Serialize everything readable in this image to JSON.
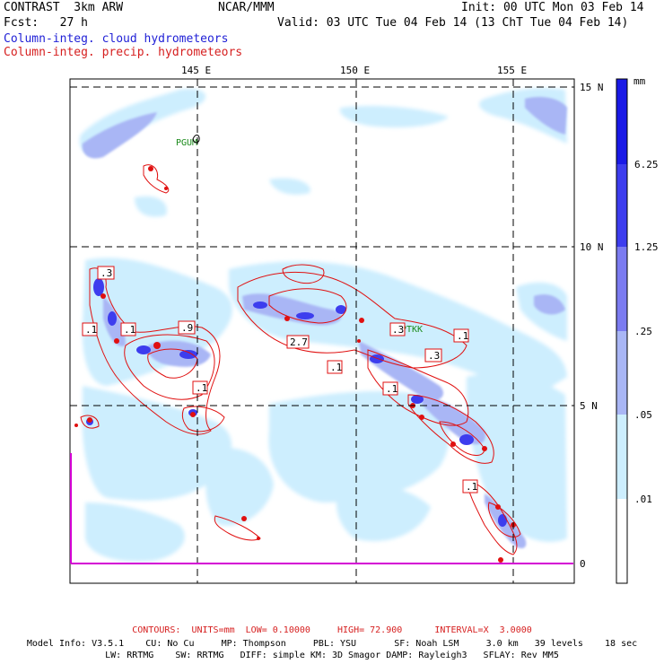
{
  "header": {
    "line1_left": "CONTRAST  3km ARW",
    "line1_center": "NCAR/MMM",
    "line1_right": "Init: 00 UTC Mon 03 Feb 14",
    "line2_left": "Fcst:   27 h",
    "line2_right": "Valid: 03 UTC Tue 04 Feb 14 (13 ChT Tue 04 Feb 14)",
    "field1": "Column-integ. cloud hydrometeors",
    "field2": "Column-integ. precip. hydrometeors"
  },
  "map": {
    "lon_labels": [
      "145 E",
      "150 E",
      "155 E"
    ],
    "lat_labels": [
      "15 N",
      "10 N",
      "5 N",
      "0"
    ],
    "stations": [
      "PGUM",
      "PTKK"
    ],
    "contour_labels": [
      ".3",
      ".1",
      ".1",
      ".9",
      ".1",
      ".1",
      "2.7",
      ".1",
      ".3",
      ".1",
      ".3",
      ".1",
      ".1"
    ]
  },
  "legend": {
    "unit": "mm",
    "levels": [
      "6.25",
      "1.25",
      ".25",
      ".05",
      ".01"
    ],
    "colors": [
      "#1a1ae6",
      "#3d3dee",
      "#7b7bf0",
      "#a9b6f5",
      "#cdeefe",
      "#ffffff"
    ]
  },
  "footer": {
    "contours": "CONTOURS:  UNITS=mm  LOW= 0.10000     HIGH= 72.900      INTERVAL=X  3.0000",
    "model_line1": "Model Info: V3.5.1    CU: No Cu     MP: Thompson     PBL: YSU       SF: Noah LSM     3.0 km   39 levels    18 sec",
    "model_line2": "LW: RRTMG    SW: RRTMG   DIFF: simple KM: 3D Smagor DAMP: Rayleigh3   SFLAY: Rev MM5"
  }
}
